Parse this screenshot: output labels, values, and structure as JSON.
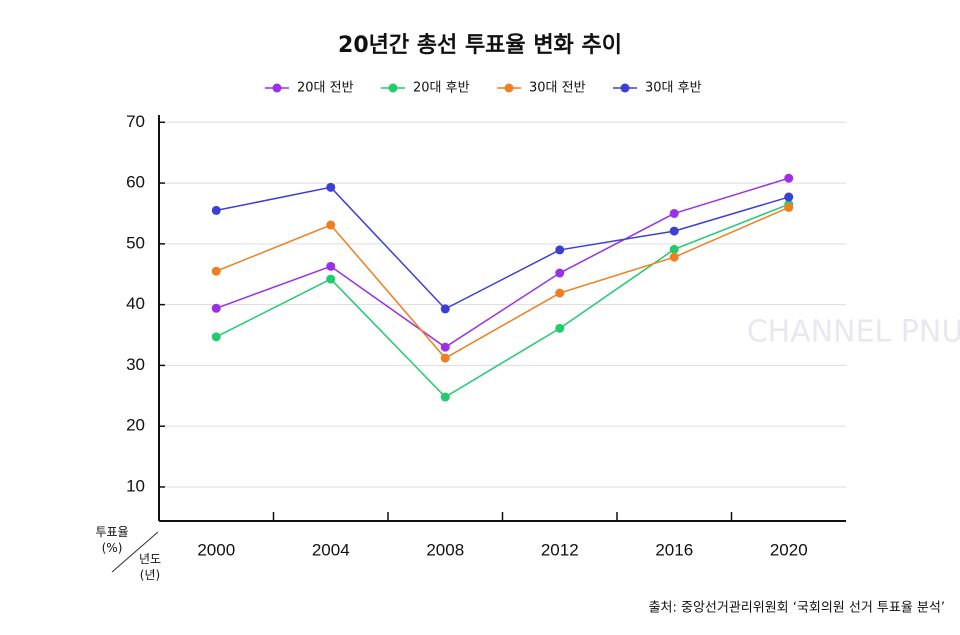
{
  "chart_data": {
    "type": "line",
    "title": "20년간 총선 투표율 변화 추이",
    "y_label": "투표율 (%)",
    "x_label": "년도 (년)",
    "source": "출처: 중앙선거관리위원회 ‘국회의원 선거 투표율 분석’",
    "watermark": "CHANNEL PNU",
    "categories": [
      "2000",
      "2004",
      "2008",
      "2012",
      "2016",
      "2020"
    ],
    "series": [
      {
        "name": "20대 전반",
        "color": "#9b30e8",
        "values": [
          39.4,
          46.3,
          33.0,
          45.2,
          55.0,
          60.8
        ]
      },
      {
        "name": "20대 후반",
        "color": "#22cc6e",
        "values": [
          34.7,
          44.2,
          24.8,
          36.1,
          49.1,
          56.5
        ]
      },
      {
        "name": "30대 전반",
        "color": "#f07f22",
        "values": [
          45.5,
          53.1,
          31.2,
          41.9,
          47.8,
          56.0
        ]
      },
      {
        "name": "30대 후반",
        "color": "#3b3fd6",
        "values": [
          55.5,
          59.3,
          39.3,
          49.0,
          52.1,
          57.7
        ]
      }
    ],
    "ylim": [
      4.4,
      71.2
    ],
    "yticks": [
      10,
      20,
      30,
      40,
      50,
      60,
      70
    ],
    "grid": true
  }
}
